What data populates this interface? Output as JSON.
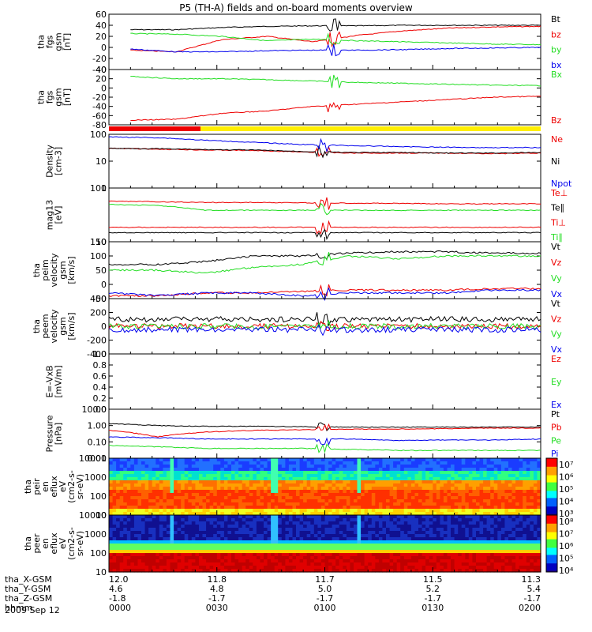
{
  "title": "P5 (TH-A) fields and on-board moments overview",
  "date": "2009 Sep 12",
  "colors": {
    "black": "#000000",
    "red": "#ee0000",
    "green": "#22dd22",
    "blue": "#0000ee",
    "yellow": "#ffee00"
  },
  "panels": [
    {
      "key": "p1",
      "ylabel": [
        "tha",
        "fgs",
        "gsm",
        "[nT]"
      ],
      "ticks": [
        "60",
        "40",
        "20",
        "0",
        "-20",
        "-40"
      ],
      "legend": [
        {
          "text": "Bt",
          "color": "black"
        },
        {
          "text": "bz",
          "color": "red"
        },
        {
          "text": "by",
          "color": "green"
        },
        {
          "text": "bx",
          "color": "blue"
        }
      ]
    },
    {
      "key": "p2",
      "ylabel": [
        "tha",
        "fgs",
        "gsm",
        "[nT]"
      ],
      "ticks": [
        "40",
        "20",
        "0",
        "-20",
        "-40",
        "-60",
        "-80"
      ],
      "legend": [
        {
          "text": "Bx",
          "color": "green"
        },
        {
          "text": "Bz",
          "color": "red"
        }
      ]
    },
    {
      "key": "p4",
      "ylabel": [
        "Density",
        "[cm-3]"
      ],
      "ticks": [
        "100",
        "10",
        "1"
      ],
      "legend": [
        {
          "text": "Ne",
          "color": "red"
        },
        {
          "text": "Ni",
          "color": "black"
        },
        {
          "text": "Npot",
          "color": "blue"
        }
      ]
    },
    {
      "key": "p5",
      "ylabel": [
        "mag13",
        "[eV]"
      ],
      "ticks": [
        "100",
        "10"
      ],
      "legend": [
        {
          "text": "Te⊥",
          "color": "red"
        },
        {
          "text": "Te∥",
          "color": "black"
        },
        {
          "text": "Ti⊥",
          "color": "red"
        },
        {
          "text": "Ti∥",
          "color": "green"
        }
      ]
    },
    {
      "key": "p6",
      "ylabel": [
        "tha",
        "peim",
        "velocity",
        "gsm",
        "[km/s]"
      ],
      "ticks": [
        "150",
        "100",
        "50",
        "0",
        "-50"
      ],
      "legend": [
        {
          "text": "Vt",
          "color": "black"
        },
        {
          "text": "Vz",
          "color": "red"
        },
        {
          "text": "Vy",
          "color": "green"
        },
        {
          "text": "Vx",
          "color": "blue"
        }
      ]
    },
    {
      "key": "p7",
      "ylabel": [
        "tha",
        "peem",
        "velocity",
        "gsm",
        "[km/s]"
      ],
      "ticks": [
        "400",
        "200",
        "0",
        "-200",
        "-400"
      ],
      "legend": [
        {
          "text": "Vt",
          "color": "black"
        },
        {
          "text": "Vz",
          "color": "red"
        },
        {
          "text": "Vy",
          "color": "green"
        },
        {
          "text": "Vx",
          "color": "blue"
        }
      ]
    },
    {
      "key": "p8",
      "ylabel": [
        "E=-VxB",
        "[mV/m]"
      ],
      "ticks": [
        "1.0",
        "0.8",
        "0.6",
        "0.4",
        "0.2",
        "0.0"
      ],
      "legend": [
        {
          "text": "Ez",
          "color": "red"
        },
        {
          "text": "Ey",
          "color": "green"
        },
        {
          "text": "Ex",
          "color": "blue"
        }
      ]
    },
    {
      "key": "p9",
      "ylabel": [
        "Pressure",
        "[nPa]"
      ],
      "ticks": [
        "10.00",
        "1.00",
        "0.10",
        "0.01"
      ],
      "legend": [
        {
          "text": "Pt",
          "color": "black"
        },
        {
          "text": "Pb",
          "color": "red"
        },
        {
          "text": "Pe",
          "color": "green"
        },
        {
          "text": "Pi",
          "color": "blue"
        }
      ]
    },
    {
      "key": "p10",
      "ylabel": [
        "tha",
        "peir",
        "en",
        "eflux",
        "eV",
        "(cm2-s-",
        "sr-eV)"
      ],
      "ticks": [
        "10000",
        "1000",
        "100",
        "10"
      ],
      "cbar": [
        "10⁷",
        "10⁶",
        "10⁵",
        "10⁴",
        "10³"
      ]
    },
    {
      "key": "p11",
      "ylabel": [
        "tha",
        "peer",
        "en",
        "eflux",
        "eV",
        "(cm2-s-",
        "sr-eV)"
      ],
      "ticks": [
        "10000",
        "1000",
        "100",
        "10"
      ],
      "cbar": [
        "10⁸",
        "10⁷",
        "10⁶",
        "10⁵",
        "10⁴"
      ]
    }
  ],
  "xaxis": {
    "rows": [
      {
        "label": "tha_X-GSM",
        "vals": [
          "12.0",
          "11.8",
          "11.7",
          "11.5",
          "11.3"
        ]
      },
      {
        "label": "tha_Y-GSM",
        "vals": [
          "4.6",
          "4.8",
          "5.0",
          "5.2",
          "5.4"
        ]
      },
      {
        "label": "tha_Z-GSM",
        "vals": [
          "-1.8",
          "-1.7",
          "-1.7",
          "-1.7",
          "-1.7"
        ]
      },
      {
        "label": "hhmm",
        "vals": [
          "0000",
          "0030",
          "0100",
          "0130",
          "0200"
        ]
      }
    ]
  },
  "chart_data": {
    "type": "line",
    "title": "P5 (TH-A) fields and on-board moments overview",
    "x_time_ticks": [
      "0000",
      "0030",
      "0100",
      "0130",
      "0200"
    ],
    "panels": [
      {
        "name": "tha fgs gsm [nT]",
        "ylim": [
          -40,
          60
        ],
        "series": [
          {
            "name": "Bt",
            "values": [
              32,
              32,
              36,
              38,
              39,
              39,
              40,
              40,
              40,
              40
            ]
          },
          {
            "name": "bz",
            "values": [
              -5,
              -8,
              14,
              20,
              10,
              22,
              30,
              35,
              37,
              38
            ]
          },
          {
            "name": "by",
            "values": [
              25,
              24,
              20,
              12,
              15,
              12,
              10,
              8,
              6,
              5
            ]
          },
          {
            "name": "bx",
            "values": [
              -3,
              -8,
              -8,
              -6,
              -5,
              -5,
              -4,
              -2,
              -1,
              0
            ]
          }
        ]
      },
      {
        "name": "tha fgs gsm [nT]",
        "ylim": [
          -80,
          40
        ],
        "series": [
          {
            "name": "Bx",
            "values": [
              25,
              20,
              20,
              18,
              15,
              12,
              10,
              8,
              6,
              5
            ]
          },
          {
            "name": "Bz",
            "values": [
              -70,
              -68,
              -55,
              -50,
              -40,
              -35,
              -30,
              -25,
              -20,
              -18
            ]
          }
        ]
      },
      {
        "name": "Density [cm-3]",
        "log": true,
        "ylim": [
          1,
          100
        ],
        "series": [
          {
            "name": "Ne",
            "values": [
              30,
              28,
              26,
              25,
              22,
              20,
              20,
              20,
              19,
              20
            ]
          },
          {
            "name": "Ni",
            "values": [
              30,
              29,
              27,
              26,
              23,
              21,
              21,
              20,
              20,
              21
            ]
          },
          {
            "name": "Npot",
            "values": [
              80,
              75,
              60,
              50,
              42,
              38,
              35,
              33,
              32,
              32
            ]
          }
        ]
      },
      {
        "name": "mag13 [eV]",
        "log": true,
        "ylim": [
          10,
          600
        ],
        "series": [
          {
            "name": "Te⊥",
            "values": [
              30,
              30,
              30,
              30,
              30,
              30,
              30,
              30,
              30,
              30
            ]
          },
          {
            "name": "Te∥",
            "values": [
              20,
              20,
              20,
              20,
              20,
              20,
              20,
              20,
              20,
              20
            ]
          },
          {
            "name": "Ti⊥",
            "values": [
              220,
              210,
              200,
              200,
              195,
              190,
              185,
              180,
              180,
              180
            ]
          },
          {
            "name": "Ti∥",
            "values": [
              170,
              160,
              110,
              110,
              110,
              110,
              110,
              110,
              110,
              110
            ]
          }
        ]
      },
      {
        "name": "tha peim velocity gsm [km/s]",
        "ylim": [
          -50,
          150
        ],
        "series": [
          {
            "name": "Vt",
            "values": [
              70,
              70,
              80,
              100,
              100,
              110,
              115,
              115,
              110,
              110
            ]
          },
          {
            "name": "Vz",
            "values": [
              -40,
              -40,
              -30,
              -30,
              -25,
              -20,
              -20,
              -20,
              -15,
              -15
            ]
          },
          {
            "name": "Vy",
            "values": [
              50,
              50,
              40,
              60,
              70,
              100,
              90,
              100,
              100,
              100
            ]
          },
          {
            "name": "Vx",
            "values": [
              -30,
              -40,
              -30,
              -30,
              -40,
              -30,
              -30,
              -30,
              -20,
              -20
            ]
          }
        ]
      },
      {
        "name": "tha peem velocity gsm [km/s]",
        "ylim": [
          -400,
          400
        ],
        "series": [
          {
            "name": "Vt",
            "values": [
              100,
              100,
              100,
              100,
              100,
              100,
              100,
              100,
              100,
              100
            ]
          },
          {
            "name": "Vz",
            "values": [
              0,
              0,
              0,
              0,
              0,
              0,
              0,
              0,
              0,
              0
            ]
          },
          {
            "name": "Vy",
            "values": [
              0,
              0,
              0,
              0,
              0,
              0,
              0,
              0,
              0,
              0
            ]
          },
          {
            "name": "Vx",
            "values": [
              -50,
              -50,
              -50,
              -50,
              -50,
              -50,
              -50,
              -50,
              -50,
              -50
            ]
          }
        ]
      },
      {
        "name": "E=-VxB [mV/m]",
        "ylim": [
          0,
          1
        ],
        "series": []
      },
      {
        "name": "Pressure [nPa]",
        "log": true,
        "ylim": [
          0.01,
          10
        ],
        "series": [
          {
            "name": "Pt",
            "values": [
              1.3,
              1.0,
              0.9,
              0.9,
              0.85,
              0.8,
              0.8,
              0.8,
              0.8,
              0.8
            ]
          },
          {
            "name": "Pb",
            "values": [
              0.5,
              0.2,
              0.4,
              0.5,
              0.55,
              0.6,
              0.6,
              0.65,
              0.7,
              0.7
            ]
          },
          {
            "name": "Pe",
            "values": [
              0.06,
              0.05,
              0.04,
              0.04,
              0.04,
              0.035,
              0.03,
              0.03,
              0.03,
              0.03
            ]
          },
          {
            "name": "Pi",
            "values": [
              0.2,
              0.18,
              0.15,
              0.15,
              0.15,
              0.15,
              0.12,
              0.13,
              0.13,
              0.15
            ]
          }
        ]
      }
    ]
  }
}
